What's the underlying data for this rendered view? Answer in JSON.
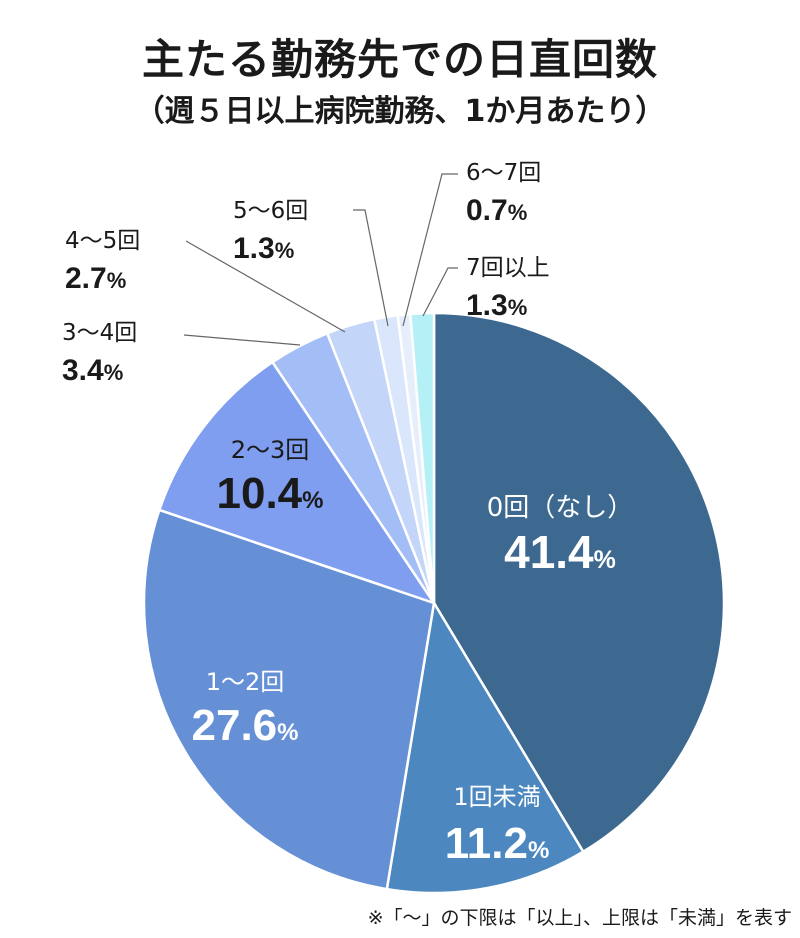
{
  "title": "主たる勤務先での日直回数",
  "subtitle": "（週５日以上病院勤務、1か月あたり）",
  "note": "※「〜」の下限は「以上」、上限は「未満」を表す",
  "chart_data": {
    "type": "pie",
    "start_angle_deg": 0,
    "direction": "clockwise",
    "slices": [
      {
        "label": "0回（なし）",
        "value": 41.4,
        "value_label": "41.4",
        "unit": "%",
        "color": "#3d6890",
        "label_position": "inside",
        "text_color": "#ffffff"
      },
      {
        "label": "1回未満",
        "value": 11.2,
        "value_label": "11.2",
        "unit": "%",
        "color": "#4c88bf",
        "label_position": "inside",
        "text_color": "#ffffff"
      },
      {
        "label": "1〜2回",
        "value": 27.6,
        "value_label": "27.6",
        "unit": "%",
        "color": "#6690d6",
        "label_position": "inside",
        "text_color": "#ffffff"
      },
      {
        "label": "2〜3回",
        "value": 10.4,
        "value_label": "10.4",
        "unit": "%",
        "color": "#7f9ef0",
        "label_position": "inside",
        "text_color": "#1a1a1a"
      },
      {
        "label": "3〜4回",
        "value": 3.4,
        "value_label": "3.4",
        "unit": "%",
        "color": "#a3bdf7",
        "label_position": "outside",
        "text_color": "#1a1a1a"
      },
      {
        "label": "4〜5回",
        "value": 2.7,
        "value_label": "2.7",
        "unit": "%",
        "color": "#c3d5f9",
        "label_position": "outside",
        "text_color": "#1a1a1a"
      },
      {
        "label": "5〜6回",
        "value": 1.3,
        "value_label": "1.3",
        "unit": "%",
        "color": "#d9e6fb",
        "label_position": "outside",
        "text_color": "#1a1a1a"
      },
      {
        "label": "6〜7回",
        "value": 0.7,
        "value_label": "0.7",
        "unit": "%",
        "color": "#e6eefc",
        "label_position": "outside",
        "text_color": "#1a1a1a"
      },
      {
        "label": "7回以上",
        "value": 1.3,
        "value_label": "1.3",
        "unit": "%",
        "color": "#b6f0f7",
        "label_position": "outside",
        "text_color": "#1a1a1a"
      }
    ]
  }
}
